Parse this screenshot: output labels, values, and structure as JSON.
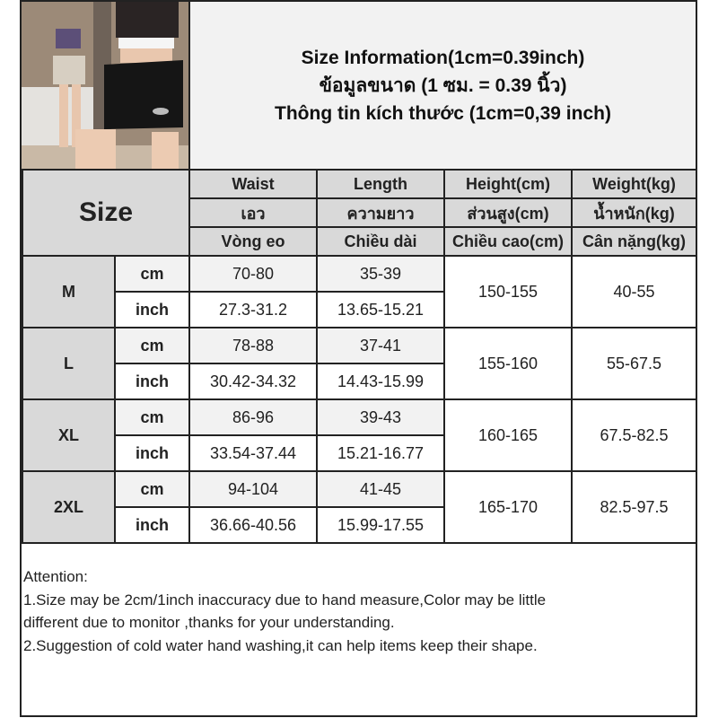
{
  "title": {
    "lines": [
      "Size Information(1cm=0.39inch)",
      "ข้อมูลขนาด (1 ซม. = 0.39 นิ้ว)",
      "Thông tin kích thước (1cm=0,39 inch)"
    ]
  },
  "table": {
    "size_label": "Size",
    "headers": [
      [
        "Waist",
        "Length",
        "Height(cm)",
        "Weight(kg)"
      ],
      [
        "เอว",
        "ความยาว",
        "ส่วนสูง(cm)",
        "น้ำหนัก(kg)"
      ],
      [
        "Vòng eo",
        "Chiều dài",
        "Chiều cao(cm)",
        "Cân nặng(kg)"
      ]
    ],
    "rows": [
      {
        "size": "M",
        "cm_label": "cm",
        "inch_label": "inch",
        "waist_cm": "70-80",
        "length_cm": "35-39",
        "waist_in": "27.3-31.2",
        "length_in": "13.65-15.21",
        "height": "150-155",
        "weight": "40-55"
      },
      {
        "size": "L",
        "cm_label": "cm",
        "inch_label": "inch",
        "waist_cm": "78-88",
        "length_cm": "37-41",
        "waist_in": "30.42-34.32",
        "length_in": "14.43-15.99",
        "height": "155-160",
        "weight": "55-67.5"
      },
      {
        "size": "XL",
        "cm_label": "cm",
        "inch_label": "inch",
        "waist_cm": "86-96",
        "length_cm": "39-43",
        "waist_in": "33.54-37.44",
        "length_in": "15.21-16.77",
        "height": "160-165",
        "weight": "67.5-82.5"
      },
      {
        "size": "2XL",
        "cm_label": "cm",
        "inch_label": "inch",
        "waist_cm": "94-104",
        "length_cm": "41-45",
        "waist_in": "36.66-40.56",
        "length_in": "15.99-17.55",
        "height": "165-170",
        "weight": "82.5-97.5"
      }
    ]
  },
  "notes": {
    "lines": [
      "Attention:",
      "1.Size may be 2cm/1inch inaccuracy due to hand measure,Color may be little",
      "different due to monitor ,thanks for your understanding.",
      "2.Suggestion of cold water hand washing,it can help items keep their shape."
    ]
  },
  "colors": {
    "header_bg": "#d9d9d9",
    "title_bg": "#f2f2f2",
    "cm_row_bg": "#f2f2f2",
    "border": "#222222"
  }
}
